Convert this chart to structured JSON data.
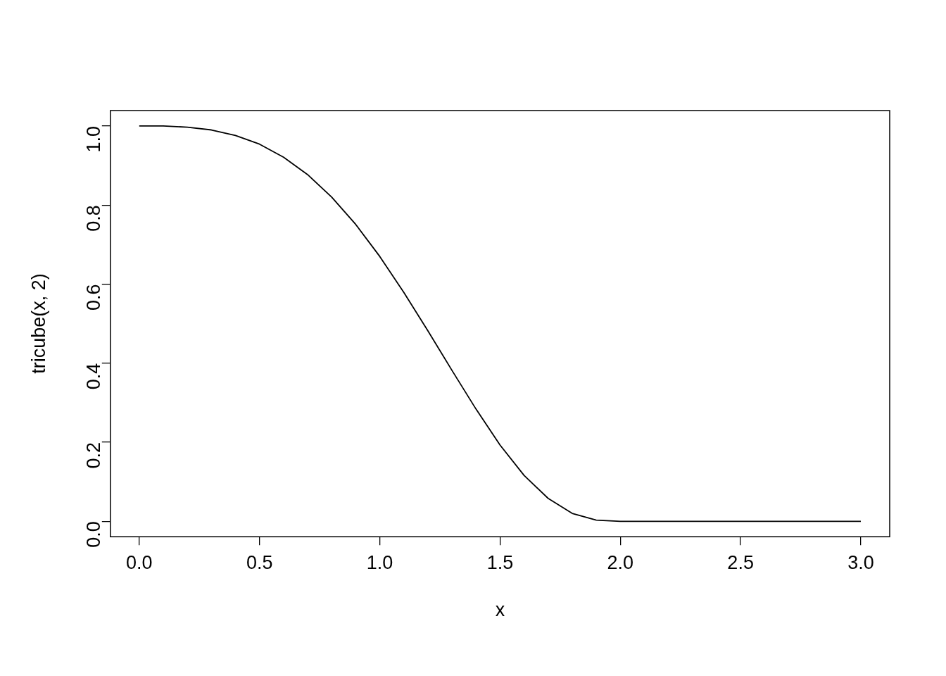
{
  "chart_data": {
    "type": "line",
    "xlabel": "x",
    "ylabel": "tricube(x, 2)",
    "x": [
      0,
      0.1,
      0.2,
      0.3,
      0.4,
      0.5,
      0.6,
      0.7,
      0.8,
      0.9,
      1.0,
      1.1,
      1.2,
      1.3,
      1.4,
      1.5,
      1.6,
      1.7,
      1.8,
      1.9,
      2.0,
      2.5,
      3.0
    ],
    "series": [
      {
        "color": "#000000",
        "values": [
          1.0,
          1.0,
          0.997,
          0.99,
          0.976,
          0.954,
          0.921,
          0.877,
          0.82,
          0.751,
          0.67,
          0.579,
          0.482,
          0.382,
          0.284,
          0.193,
          0.116,
          0.058,
          0.02,
          0.003,
          0,
          0,
          0
        ]
      }
    ],
    "xlim": [
      -0.12,
      3.12
    ],
    "ylim": [
      -0.039,
      1.039
    ],
    "xticks": [
      {
        "value": 0,
        "label": "0.0"
      },
      {
        "value": 0.5,
        "label": "0.5"
      },
      {
        "value": 1,
        "label": "1.0"
      },
      {
        "value": 1.5,
        "label": "1.5"
      },
      {
        "value": 2,
        "label": "2.0"
      },
      {
        "value": 2.5,
        "label": "2.5"
      },
      {
        "value": 3,
        "label": "3.0"
      }
    ],
    "yticks": [
      {
        "value": 0,
        "label": "0.0"
      },
      {
        "value": 0.2,
        "label": "0.2"
      },
      {
        "value": 0.4,
        "label": "0.4"
      },
      {
        "value": 0.6,
        "label": "0.6"
      },
      {
        "value": 0.8,
        "label": "0.8"
      },
      {
        "value": 1,
        "label": "1.0"
      }
    ],
    "grid": false,
    "legend": false,
    "marker": "none",
    "line_style": "solid"
  }
}
